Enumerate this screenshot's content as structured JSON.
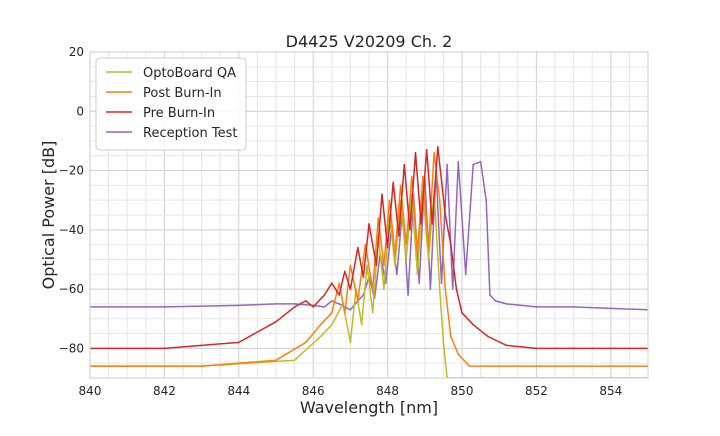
{
  "chart_data": {
    "type": "line",
    "title": "D4425 V20209 Ch. 2",
    "xlabel": "Wavelength [nm]",
    "ylabel": "Optical Power [dB]",
    "xlim": [
      840,
      855
    ],
    "ylim": [
      -90,
      20
    ],
    "x_ticks": [
      840,
      842,
      844,
      846,
      848,
      850,
      852,
      854
    ],
    "x_tick_labels": [
      "840",
      "842",
      "844",
      "846",
      "848",
      "850",
      "852",
      "854"
    ],
    "y_ticks": [
      20,
      0,
      -20,
      -40,
      -60,
      -80
    ],
    "y_tick_labels": [
      "20",
      "0",
      "−20",
      "−40",
      "−60",
      "−80"
    ],
    "grid": true,
    "legend_position": "upper-left",
    "series": [
      {
        "name": "OptoBoard QA",
        "color": "#bcbd22",
        "x": [
          840.0,
          843.0,
          845.5,
          846.2,
          846.5,
          846.8,
          847.0,
          847.15,
          847.3,
          847.45,
          847.6,
          847.75,
          847.9,
          848.05,
          848.2,
          848.35,
          848.5,
          848.65,
          848.8,
          848.95,
          849.1,
          849.25,
          849.4,
          849.5,
          849.6,
          850.0,
          855.0
        ],
        "y": [
          -86,
          -86,
          -84,
          -76,
          -72,
          -65,
          -78,
          -60,
          -72,
          -52,
          -68,
          -42,
          -60,
          -35,
          -52,
          -30,
          -50,
          -28,
          -55,
          -27,
          -50,
          -27,
          -60,
          -78,
          -90,
          -90,
          -90
        ]
      },
      {
        "name": "Post Burn-In",
        "color": "#ff7f0e",
        "x": [
          840.0,
          843.0,
          845.0,
          845.8,
          846.2,
          846.5,
          846.7,
          846.85,
          847.0,
          847.2,
          847.4,
          847.6,
          847.75,
          847.9,
          848.05,
          848.2,
          848.35,
          848.5,
          848.65,
          848.8,
          848.95,
          849.1,
          849.25,
          849.4,
          849.55,
          849.7,
          849.9,
          850.2,
          855.0
        ],
        "y": [
          -86,
          -86,
          -84,
          -78,
          -72,
          -68,
          -58,
          -68,
          -52,
          -64,
          -45,
          -60,
          -36,
          -52,
          -30,
          -48,
          -25,
          -45,
          -22,
          -48,
          -22,
          -46,
          -14,
          -30,
          -60,
          -76,
          -82,
          -86,
          -86
        ]
      },
      {
        "name": "Pre Burn-In",
        "color": "#d62728",
        "x": [
          840.0,
          842.0,
          844.0,
          845.0,
          845.5,
          845.8,
          846.0,
          846.3,
          846.5,
          846.7,
          846.85,
          847.0,
          847.2,
          847.35,
          847.5,
          847.7,
          847.85,
          848.0,
          848.15,
          848.3,
          848.45,
          848.6,
          848.75,
          848.9,
          849.05,
          849.2,
          849.35,
          849.55,
          849.7,
          849.85,
          850.0,
          850.3,
          850.7,
          851.2,
          852.0,
          853.0,
          855.0
        ],
        "y": [
          -80,
          -80,
          -78,
          -71,
          -66,
          -64,
          -66,
          -62,
          -58,
          -62,
          -54,
          -60,
          -46,
          -56,
          -38,
          -52,
          -28,
          -46,
          -24,
          -42,
          -18,
          -40,
          -14,
          -38,
          -13,
          -38,
          -12,
          -35,
          -45,
          -60,
          -68,
          -72,
          -76,
          -79,
          -80,
          -80,
          -80
        ]
      },
      {
        "name": "Reception Test",
        "color": "#9467bd",
        "x": [
          840.0,
          842.0,
          844.0,
          845.0,
          845.5,
          846.0,
          846.3,
          846.5,
          846.7,
          847.0,
          847.2,
          847.35,
          847.5,
          847.65,
          847.8,
          847.95,
          848.1,
          848.25,
          848.4,
          848.55,
          848.7,
          848.85,
          849.0,
          849.15,
          849.3,
          849.45,
          849.6,
          849.75,
          849.9,
          850.1,
          850.3,
          850.5,
          850.65,
          850.75,
          850.9,
          851.2,
          852.0,
          853.0,
          854.0,
          855.0
        ],
        "y": [
          -66,
          -66,
          -65.5,
          -65,
          -65,
          -65.5,
          -66,
          -64,
          -65,
          -67,
          -64,
          -62,
          -56,
          -63,
          -48,
          -58,
          -40,
          -55,
          -33,
          -62,
          -28,
          -58,
          -22,
          -60,
          -20,
          -58,
          -18,
          -60,
          -17,
          -55,
          -18,
          -17,
          -30,
          -62,
          -64,
          -65,
          -66,
          -66,
          -66.5,
          -67
        ]
      }
    ]
  }
}
